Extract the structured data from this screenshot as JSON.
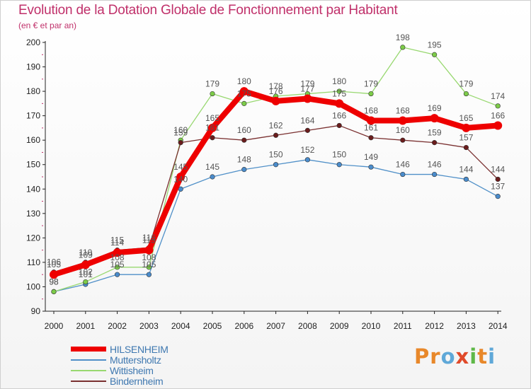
{
  "title": "Evolution de la Dotation Globale de Fonctionnement par Habitant",
  "subtitle": "(en € et par an)",
  "logo": {
    "text": "Proxiti",
    "letters": [
      {
        "ch": "P",
        "color": "#e8882a"
      },
      {
        "ch": "r",
        "color": "#e8882a"
      },
      {
        "ch": "o",
        "color": "#5fa8d8"
      },
      {
        "ch": "x",
        "color": "#e04a2a"
      },
      {
        "ch": "i",
        "color": "#5fb848"
      },
      {
        "ch": "t",
        "color": "#e8882a"
      },
      {
        "ch": "i",
        "color": "#5fa8d8"
      }
    ]
  },
  "chart_data": {
    "type": "line",
    "title": "Evolution de la Dotation Globale de Fonctionnement par Habitant",
    "ylabel": "(en € et par an)",
    "xlabel": "",
    "ylim": [
      90,
      200
    ],
    "yticks": [
      90,
      100,
      110,
      120,
      130,
      140,
      150,
      160,
      170,
      180,
      190,
      200
    ],
    "x": [
      "2000",
      "2001",
      "2002",
      "2003",
      "2004",
      "2005",
      "2006",
      "2007",
      "2008",
      "2009",
      "2010",
      "2011",
      "2012",
      "2013",
      "2014"
    ],
    "grid": false,
    "legend": "bottom-left",
    "series": [
      {
        "name": "Muttersholtz",
        "color": "#5090c8",
        "marker": "#4a8ccc",
        "values": [
          98,
          101,
          105,
          105,
          140,
          145,
          148,
          150,
          152,
          150,
          149,
          146,
          146,
          144,
          137
        ],
        "labels": [
          "98",
          "101",
          "105",
          "105",
          "140",
          "145",
          "148",
          "150",
          "152",
          "150",
          "149",
          "146",
          "146",
          "144",
          "137"
        ]
      },
      {
        "name": "Wittisheim",
        "color": "#98d870",
        "marker": "#7ccc48",
        "values": [
          98,
          102,
          108,
          108,
          160,
          179,
          175,
          178,
          179,
          180,
          179,
          198,
          195,
          179,
          174
        ],
        "labels": [
          "98",
          "102",
          "108",
          "108",
          "160",
          "179",
          "175",
          "178",
          "179",
          "180",
          "179",
          "198",
          "195",
          "179",
          "174"
        ]
      },
      {
        "name": "Bindernheim",
        "color": "#7a3030",
        "marker": "#6a1c1c",
        "values": [
          106,
          110,
          115,
          116,
          159,
          161,
          160,
          162,
          164,
          166,
          161,
          160,
          159,
          157,
          144
        ],
        "labels": [
          "106",
          "110",
          "115",
          "116",
          "159",
          "161",
          "160",
          "162",
          "164",
          "166",
          "161",
          "160",
          "159",
          "157",
          "144"
        ]
      },
      {
        "name": "HILSENHEIM",
        "color": "#ee0000",
        "marker": "#ee0000",
        "values": [
          105,
          109,
          114,
          115,
          145,
          165,
          180,
          176,
          177,
          175,
          168,
          168,
          169,
          165,
          166
        ],
        "labels": [
          "105",
          "109",
          "114",
          "115",
          "145",
          "165",
          "180",
          "176",
          "177",
          "175",
          "168",
          "168",
          "169",
          "165",
          "166"
        ]
      }
    ]
  },
  "legend": [
    {
      "name": "HILSENHEIM",
      "color": "#ee0000",
      "thickness": "thick"
    },
    {
      "name": "Muttersholtz",
      "color": "#5090c8",
      "thickness": "thin"
    },
    {
      "name": "Wittisheim",
      "color": "#98d870",
      "thickness": "thin"
    },
    {
      "name": "Bindernheim",
      "color": "#7a3030",
      "thickness": "thin"
    }
  ]
}
